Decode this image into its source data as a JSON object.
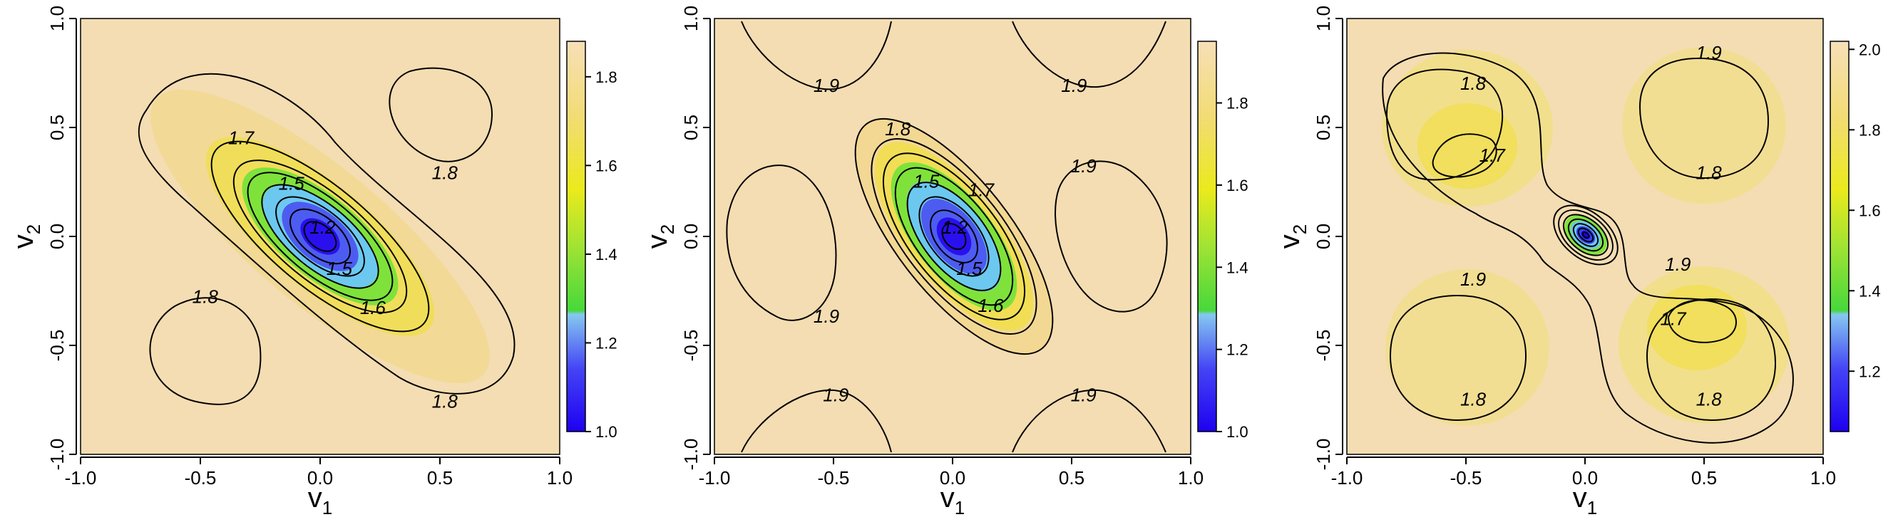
{
  "chart_data": [
    {
      "type": "heatmap",
      "title": "",
      "xlabel": "v",
      "xlabel_sub": "1",
      "ylabel": "v",
      "ylabel_sub": "2",
      "xlim": [
        -1.0,
        1.0
      ],
      "ylim": [
        -1.0,
        1.0
      ],
      "x_ticks": [
        "-1.0",
        "-0.5",
        "0.0",
        "0.5",
        "1.0"
      ],
      "y_ticks": [
        "-1.0",
        "-0.5",
        "0.0",
        "0.5",
        "1.0"
      ],
      "colorbar": {
        "range": [
          1.0,
          1.88
        ],
        "ticks": [
          "1.0",
          "1.2",
          "1.4",
          "1.6",
          "1.8"
        ]
      },
      "contour_labels": [
        {
          "text": "1.7",
          "x": -0.33,
          "y": 0.45
        },
        {
          "text": "1.5",
          "x": -0.12,
          "y": 0.24
        },
        {
          "text": "1.5",
          "x": 0.08,
          "y": -0.15
        },
        {
          "text": "1.2",
          "x": 0.01,
          "y": 0.04
        },
        {
          "text": "1.6",
          "x": 0.22,
          "y": -0.33
        },
        {
          "text": "1.8",
          "x": 0.52,
          "y": 0.29
        },
        {
          "text": "1.8",
          "x": -0.48,
          "y": -0.28
        },
        {
          "text": "1.8",
          "x": 0.52,
          "y": -0.76
        }
      ]
    },
    {
      "type": "heatmap",
      "title": "",
      "xlabel": "v",
      "xlabel_sub": "1",
      "ylabel": "v",
      "ylabel_sub": "2",
      "xlim": [
        -1.0,
        1.0
      ],
      "ylim": [
        -1.0,
        1.0
      ],
      "x_ticks": [
        "-1.0",
        "-0.5",
        "0.0",
        "0.5",
        "1.0"
      ],
      "y_ticks": [
        "-1.0",
        "-0.5",
        "0.0",
        "0.5",
        "1.0"
      ],
      "colorbar": {
        "range": [
          1.0,
          1.95
        ],
        "ticks": [
          "1.0",
          "1.2",
          "1.4",
          "1.6",
          "1.8"
        ]
      },
      "contour_labels": [
        {
          "text": "1.9",
          "x": -0.53,
          "y": 0.69
        },
        {
          "text": "1.9",
          "x": 0.51,
          "y": 0.69
        },
        {
          "text": "1.8",
          "x": -0.23,
          "y": 0.49
        },
        {
          "text": "1.5",
          "x": -0.11,
          "y": 0.25
        },
        {
          "text": "1.7",
          "x": 0.12,
          "y": 0.21
        },
        {
          "text": "1.2",
          "x": 0.01,
          "y": 0.04
        },
        {
          "text": "1.5",
          "x": 0.07,
          "y": -0.15
        },
        {
          "text": "1.6",
          "x": 0.16,
          "y": -0.32
        },
        {
          "text": "1.9",
          "x": 0.55,
          "y": 0.32
        },
        {
          "text": "1.9",
          "x": -0.53,
          "y": -0.37
        },
        {
          "text": "1.9",
          "x": -0.49,
          "y": -0.73
        },
        {
          "text": "1.9",
          "x": 0.55,
          "y": -0.73
        }
      ]
    },
    {
      "type": "heatmap",
      "title": "",
      "xlabel": "v",
      "xlabel_sub": "1",
      "ylabel": "v",
      "ylabel_sub": "2",
      "xlim": [
        -1.0,
        1.0
      ],
      "ylim": [
        -1.0,
        1.0
      ],
      "x_ticks": [
        "-1.0",
        "-0.5",
        "0.0",
        "0.5",
        "1.0"
      ],
      "y_ticks": [
        "-1.0",
        "-0.5",
        "0.0",
        "0.5",
        "1.0"
      ],
      "colorbar": {
        "range": [
          1.05,
          2.02
        ],
        "ticks": [
          "1.2",
          "1.4",
          "1.6",
          "1.8",
          "2.0"
        ]
      },
      "contour_labels": [
        {
          "text": "1.8",
          "x": -0.47,
          "y": 0.7
        },
        {
          "text": "1.9",
          "x": 0.52,
          "y": 0.84
        },
        {
          "text": "1.7",
          "x": -0.39,
          "y": 0.37
        },
        {
          "text": "1.8",
          "x": 0.52,
          "y": 0.29
        },
        {
          "text": "1.9",
          "x": 0.39,
          "y": -0.13
        },
        {
          "text": "1.9",
          "x": -0.47,
          "y": -0.2
        },
        {
          "text": "1.7",
          "x": 0.37,
          "y": -0.38
        },
        {
          "text": "1.8",
          "x": -0.47,
          "y": -0.75
        },
        {
          "text": "1.8",
          "x": 0.52,
          "y": -0.75
        }
      ]
    }
  ]
}
